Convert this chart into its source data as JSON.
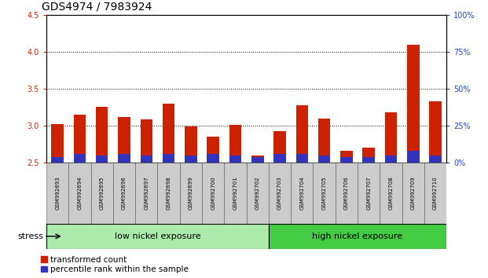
{
  "title": "GDS4974 / 7983924",
  "samples": [
    "GSM992693",
    "GSM992694",
    "GSM992695",
    "GSM992696",
    "GSM992697",
    "GSM992698",
    "GSM992699",
    "GSM992700",
    "GSM992701",
    "GSM992702",
    "GSM992703",
    "GSM992704",
    "GSM992705",
    "GSM992706",
    "GSM992707",
    "GSM992708",
    "GSM992709",
    "GSM992710"
  ],
  "transformed_count": [
    3.02,
    3.15,
    3.26,
    3.12,
    3.09,
    3.3,
    2.99,
    2.85,
    3.01,
    2.6,
    2.93,
    3.28,
    3.1,
    2.66,
    2.7,
    3.18,
    4.1,
    3.33
  ],
  "percentile_rank_pct": [
    4,
    6,
    5,
    6,
    5,
    6,
    5,
    6,
    5,
    4,
    6,
    6,
    5,
    4,
    4,
    5,
    8,
    5
  ],
  "low_group_count": 10,
  "high_group_count": 8,
  "low_label": "low nickel exposure",
  "high_label": "high nickel exposure",
  "stress_label": "stress",
  "ylim_left": [
    2.5,
    4.5
  ],
  "ylim_right": [
    0,
    100
  ],
  "yticks_left": [
    2.5,
    3.0,
    3.5,
    4.0,
    4.5
  ],
  "yticks_right": [
    0,
    25,
    50,
    75,
    100
  ],
  "bar_color_red": "#cc2200",
  "bar_color_blue": "#3333bb",
  "bar_width": 0.55,
  "base": 2.5,
  "group_bg_low": "#aaeaaa",
  "group_bg_high": "#44cc44",
  "tick_label_bg": "#cccccc",
  "left_axis_color": "#cc2200",
  "right_axis_color": "#2244cc",
  "grid_color": "black",
  "legend_red_label": "transformed count",
  "legend_blue_label": "percentile rank within the sample",
  "title_fontsize": 10,
  "tick_fontsize": 7,
  "sample_fontsize": 5,
  "label_fontsize": 8,
  "legend_fontsize": 7.5
}
